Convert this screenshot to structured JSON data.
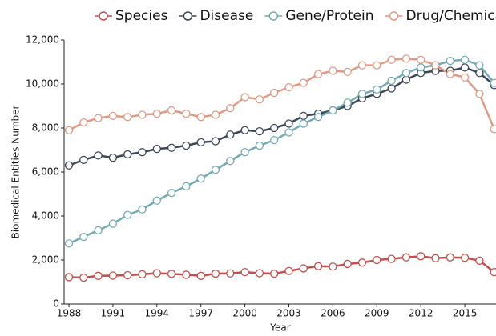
{
  "chart_data": {
    "type": "line",
    "xlabel": "Year",
    "ylabel": "Biomedical Entities Number",
    "x": [
      1988,
      1989,
      1990,
      1991,
      1992,
      1993,
      1994,
      1995,
      1996,
      1997,
      1998,
      1999,
      2000,
      2001,
      2002,
      2003,
      2004,
      2005,
      2006,
      2007,
      2008,
      2009,
      2010,
      2011,
      2012,
      2013,
      2014,
      2015,
      2016,
      2017
    ],
    "xlim": [
      1988,
      2017
    ],
    "xticks": [
      1988,
      1991,
      1994,
      1997,
      2000,
      2003,
      2006,
      2009,
      2012,
      2015
    ],
    "ylim": [
      0,
      12000
    ],
    "yticks": [
      0,
      {
        "value": 2000,
        "label": "2,000"
      },
      {
        "value": 4000,
        "label": "4,000"
      },
      {
        "value": 6000,
        "label": "6,000"
      },
      {
        "value": 8000,
        "label": "8,000"
      },
      {
        "value": 10000,
        "label": "10,000"
      },
      {
        "value": 12000,
        "label": "12,000"
      }
    ],
    "grid": false,
    "series": [
      {
        "name": "Species",
        "color": "#c0504d",
        "values": [
          1220,
          1200,
          1280,
          1290,
          1310,
          1350,
          1400,
          1370,
          1330,
          1280,
          1380,
          1390,
          1450,
          1400,
          1380,
          1500,
          1620,
          1720,
          1700,
          1820,
          1880,
          2000,
          2050,
          2120,
          2170,
          2080,
          2120,
          2100,
          1970,
          1450
        ]
      },
      {
        "name": "Disease",
        "color": "#3b4656",
        "values": [
          6300,
          6550,
          6750,
          6650,
          6800,
          6900,
          7050,
          7100,
          7200,
          7350,
          7400,
          7700,
          7900,
          7850,
          8000,
          8200,
          8550,
          8650,
          8800,
          9000,
          9350,
          9550,
          9800,
          10200,
          10500,
          10600,
          10600,
          10750,
          10500,
          9950
        ]
      },
      {
        "name": "Gene/Protein",
        "color": "#74aab2",
        "values": [
          2750,
          3050,
          3350,
          3650,
          4050,
          4300,
          4700,
          5050,
          5350,
          5700,
          6100,
          6500,
          6900,
          7200,
          7450,
          7800,
          8200,
          8500,
          8800,
          9150,
          9550,
          9750,
          10150,
          10500,
          10750,
          10850,
          11050,
          11100,
          10850,
          10050
        ]
      },
      {
        "name": "Drug/Chemical",
        "color": "#dd9a85",
        "values": [
          7900,
          8250,
          8450,
          8550,
          8500,
          8600,
          8650,
          8800,
          8650,
          8500,
          8600,
          8900,
          9400,
          9300,
          9600,
          9850,
          10050,
          10450,
          10600,
          10550,
          10850,
          10850,
          11100,
          11150,
          11100,
          10850,
          10450,
          10300,
          9550,
          7950
        ]
      }
    ]
  }
}
